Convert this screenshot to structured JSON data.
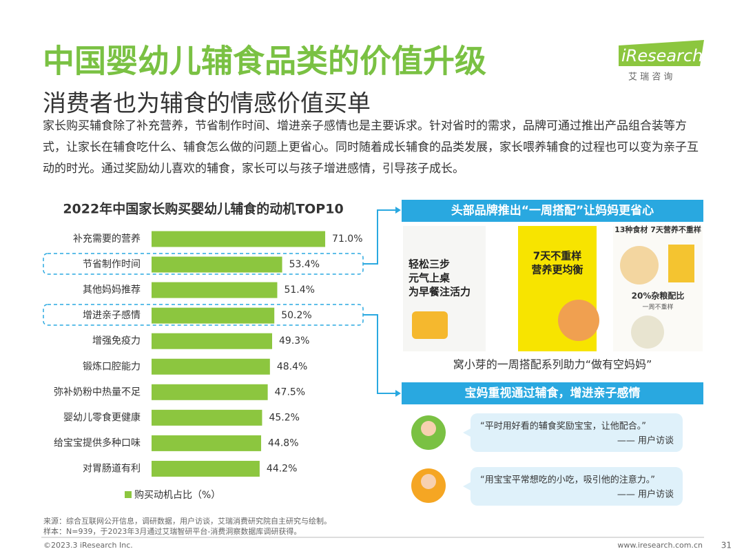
{
  "header": {
    "title": "中国婴幼儿辅食品类的价值升级",
    "subtitle": "消费者也为辅食的情感价值买单",
    "logo": "iResearch",
    "logo_sub": "艾 瑞 咨 询"
  },
  "intro": "家长购买辅食除了补充营养，节省制作时间、增进亲子感情也是主要诉求。针对省时的需求，品牌可通过推出产品组合装等方式，让家长在辅食吃什么、辅食怎么做的问题上更省心。同时随着成长辅食的品类发展，家长喂养辅食的过程也可以变为亲子互动的时光。通过奖励幼儿喜欢的辅食，家长可以与孩子增进感情，引导孩子成长。",
  "chart_data": {
    "type": "bar",
    "orientation": "horizontal",
    "title": "2022年中国家长购买婴幼儿辅食的动机TOP10",
    "categories": [
      "补充需要的营养",
      "节省制作时间",
      "其他妈妈推荐",
      "增进亲子感情",
      "增强免疫力",
      "锻炼口腔能力",
      "弥补奶粉中热量不足",
      "婴幼儿零食更健康",
      "给宝宝提供多种口味",
      "对胃肠道有利"
    ],
    "series": [
      {
        "name": "购买动机占比（%）",
        "color": "#8cc63f",
        "values": [
          71.0,
          53.4,
          51.4,
          50.2,
          49.3,
          48.4,
          47.5,
          45.2,
          44.8,
          44.2
        ],
        "value_labels": [
          "71.0%",
          "53.4%",
          "51.4%",
          "50.2%",
          "49.3%",
          "48.4%",
          "47.5%",
          "45.2%",
          "44.8%",
          "44.2%"
        ]
      }
    ]
  },
  "panels": {
    "brand": {
      "title": "头部品牌推出“一周搭配”让妈妈更省心",
      "caption": "窝小芽的一周搭配系列助力“做有空妈妈”",
      "card1": [
        "轻松三步",
        "元气上桌",
        "为早餐注活力"
      ],
      "card2": [
        "7天不重样",
        "营养更均衡"
      ],
      "card3": [
        "13种食材 7天营养不重样",
        "20%杂粮配比",
        "一周不重样"
      ]
    },
    "emotion": {
      "title": "宝妈重视通过辅食，增进亲子感情",
      "quotes": [
        {
          "text": "“平时用好看的辅食奖励宝宝，让他配合。”",
          "source": "—— 用户访谈"
        },
        {
          "text": "“用宝宝平常想吃的小吃，吸引他的注意力。”",
          "source": "—— 用户访谈"
        }
      ]
    }
  },
  "footer": {
    "source": "来源：综合互联网公开信息，调研数据，用户访谈，艾瑞消费研究院自主研究与绘制。",
    "sample": "样本：N=939，于2023年3月通过艾瑞智研平台-消费洞察数据库调研获得。",
    "copyright": "©2023.3 iResearch Inc.",
    "website": "www.iresearch.com.cn",
    "page": "31"
  }
}
